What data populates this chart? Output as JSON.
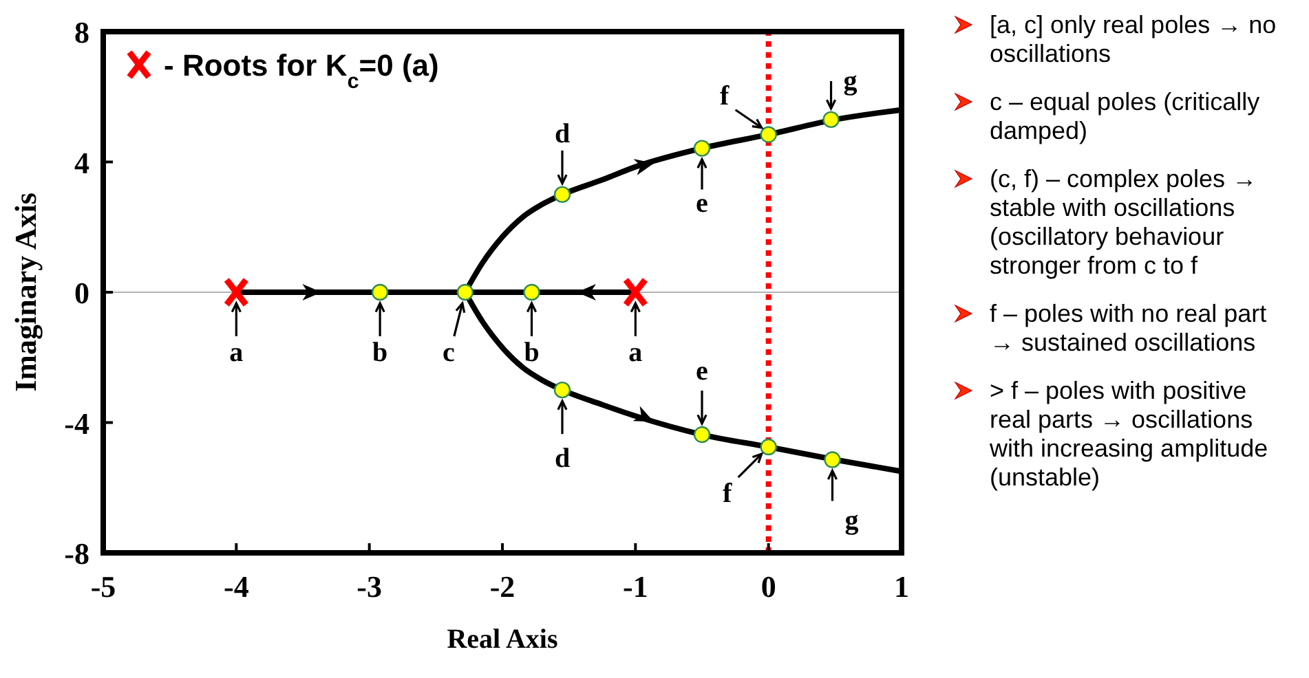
{
  "chart_data": {
    "type": "line",
    "xlabel": "Real Axis",
    "ylabel": "Imaginary Axis",
    "xlim": [
      -5,
      1
    ],
    "ylim": [
      -8,
      8
    ],
    "xticks": [
      -5,
      -4,
      -3,
      -2,
      -1,
      0,
      1
    ],
    "yticks": [
      -8,
      -4,
      0,
      4,
      8
    ],
    "grid": false,
    "legend": "top left",
    "line_style": "solid",
    "marker": "none",
    "series": [
      {
        "color": "#000000",
        "x": [
          -2.28,
          -2.15,
          -2.0,
          -1.85,
          -1.7,
          -1.55,
          -1.25,
          -1.0,
          -0.5,
          0,
          0.5,
          1
        ],
        "values": [
          0,
          0.9,
          1.7,
          2.3,
          2.7,
          3.0,
          3.45,
          3.85,
          4.42,
          4.84,
          5.3,
          5.6
        ]
      },
      {
        "color": "#000000",
        "x": [
          -2.28,
          -2.15,
          -2.0,
          -1.85,
          -1.7,
          -1.55,
          -1.25,
          -1.0,
          -0.5,
          0,
          0.5,
          1
        ],
        "values": [
          0,
          -0.9,
          -1.7,
          -2.3,
          -2.7,
          -3.0,
          -3.45,
          -3.8,
          -4.37,
          -4.75,
          -5.14,
          -5.5
        ]
      },
      {
        "color": "#000000",
        "x": [
          -4,
          -1
        ],
        "values": [
          0,
          0
        ]
      },
      {
        "type": "scatter",
        "marker": "circle",
        "color": "#ffff00",
        "x": [
          -2.92,
          -2.28,
          -1.78,
          -1.55,
          -0.5,
          0,
          0.47,
          -1.55,
          -0.5,
          0,
          0.48
        ],
        "values": [
          0,
          0,
          0,
          3.0,
          4.42,
          4.84,
          5.3,
          -3.0,
          -4.37,
          -4.75,
          -5.14
        ]
      },
      {
        "type": "scatter",
        "marker": "cross",
        "color": "#ff0000",
        "name": "- Roots for K$_{c}$=0 (a)",
        "x": [
          -4,
          -1
        ],
        "values": [
          0,
          0
        ]
      }
    ],
    "ref_lines": [
      {
        "axis": "x",
        "value": 0,
        "color": "#ff0000",
        "line_style": "dotted"
      },
      {
        "axis": "y",
        "value": 0,
        "color": "#999999",
        "line_style": "solid"
      }
    ],
    "annotations": [
      {
        "text": "a",
        "x": -4,
        "y": 0
      },
      {
        "text": "b",
        "x": -2.92,
        "y": 0
      },
      {
        "text": "c",
        "x": -2.28,
        "y": 0
      },
      {
        "text": "b",
        "x": -1.78,
        "y": 0
      },
      {
        "text": "a",
        "x": -1,
        "y": 0
      },
      {
        "text": "d",
        "x": -1.55,
        "y": 3.0
      },
      {
        "text": "e",
        "x": -0.5,
        "y": 4.42
      },
      {
        "text": "f",
        "x": 0,
        "y": 4.84
      },
      {
        "text": "g",
        "x": 0.47,
        "y": 5.3
      },
      {
        "text": "d",
        "x": -1.55,
        "y": -3.0
      },
      {
        "text": "e",
        "x": -0.5,
        "y": -4.37
      },
      {
        "text": "f",
        "x": 0,
        "y": -4.75
      },
      {
        "text": "g",
        "x": 0.48,
        "y": -5.14
      },
      "[a, c] only real poles → no oscillations",
      "c – equal poles (critically damped)",
      "(c, f) – complex poles → stable with oscillations (oscillatory behaviour stronger from c to f",
      "f – poles with no real part → sustained oscillations",
      "> f – poles with positive real parts → oscillations with increasing amplitude (unstable)"
    ]
  }
}
